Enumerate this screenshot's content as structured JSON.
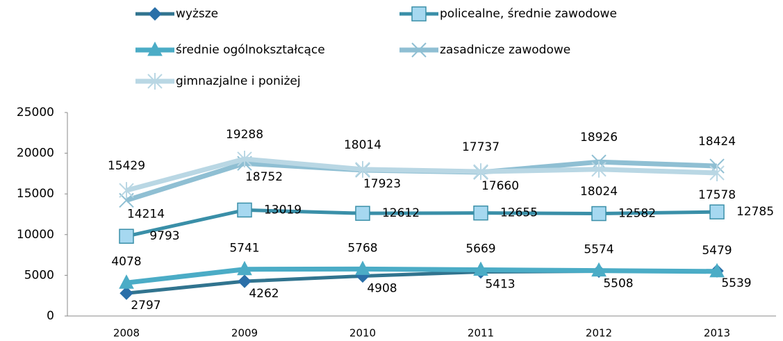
{
  "chart_data": {
    "type": "line",
    "categories": [
      "2008",
      "2009",
      "2010",
      "2011",
      "2012",
      "2013"
    ],
    "ylim": [
      0,
      25000
    ],
    "yticks": [
      0,
      5000,
      10000,
      15000,
      20000,
      25000
    ],
    "series": [
      {
        "name": "wyższe",
        "color": "#31748f",
        "marker": "diamond",
        "values": [
          2797,
          4262,
          4908,
          5413,
          5508,
          5539
        ]
      },
      {
        "name": "policealne, średnie zawodowe",
        "color": "#3a8fa8",
        "marker": "square",
        "values": [
          9793,
          13019,
          12612,
          12655,
          12582,
          12785
        ]
      },
      {
        "name": "średnie ogólnokształcące",
        "color": "#4bacc6",
        "marker": "triangle",
        "values": [
          4078,
          5741,
          5768,
          5669,
          5574,
          5479
        ]
      },
      {
        "name": "zasadnicze zawodowe",
        "color": "#8fbfd3",
        "marker": "x",
        "values": [
          14214,
          18752,
          17923,
          17660,
          18926,
          18424
        ]
      },
      {
        "name": "gimnazjalne i poniżej",
        "color": "#b9d7e4",
        "marker": "star",
        "values": [
          15429,
          19288,
          18014,
          17737,
          18024,
          17578
        ]
      }
    ]
  }
}
